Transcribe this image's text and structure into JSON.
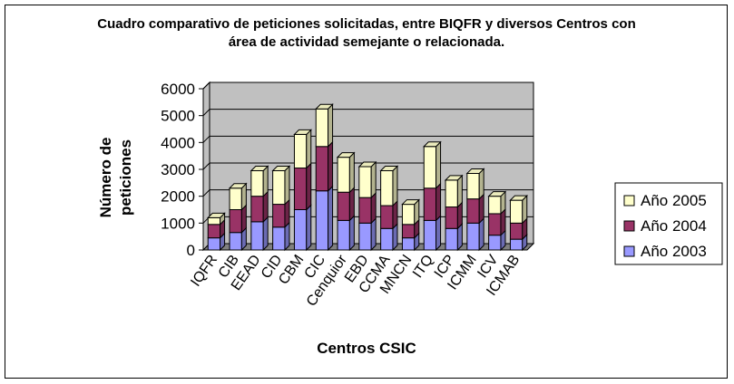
{
  "chart_data": {
    "type": "bar",
    "stacked": true,
    "three_d": true,
    "title_lines": [
      "Cuadro comparativo de peticiones solicitadas, entre BIQFR y diversos Centros con",
      "área de actividad semejante o relacionada."
    ],
    "xlabel": "Centros CSIC",
    "ylabel_lines": [
      "Número de",
      "peticiones"
    ],
    "categories": [
      "IQFR",
      "CIB",
      "EEAD",
      "CID",
      "CBM",
      "CIC",
      "Cenquior",
      "EBD",
      "CCMA",
      "MNCN",
      "ITQ",
      "ICP",
      "ICMM",
      "ICV",
      "ICMAB"
    ],
    "series": [
      {
        "name": "Año 2003",
        "color": "#9999ff",
        "values": [
          450,
          650,
          1050,
          850,
          1500,
          2200,
          1100,
          1000,
          800,
          450,
          1100,
          800,
          1000,
          550,
          400
        ]
      },
      {
        "name": "Año 2004",
        "color": "#993366",
        "values": [
          500,
          850,
          950,
          850,
          1550,
          1650,
          1050,
          950,
          850,
          500,
          1200,
          800,
          900,
          800,
          600
        ]
      },
      {
        "name": "Año 2005",
        "color": "#ffffcc",
        "values": [
          250,
          800,
          950,
          1250,
          1250,
          1400,
          1300,
          1150,
          1300,
          750,
          1550,
          1000,
          950,
          650,
          850
        ]
      }
    ],
    "legend_order": [
      "Año 2005",
      "Año 2004",
      "Año 2003"
    ],
    "ylim": [
      0,
      6000
    ],
    "yticks": [
      "0",
      "1000",
      "2000",
      "3000",
      "4000",
      "5000",
      "6000"
    ],
    "grid": true,
    "legend": "right",
    "wall_color": "#c0c0c0",
    "floor_color": "#808080"
  }
}
